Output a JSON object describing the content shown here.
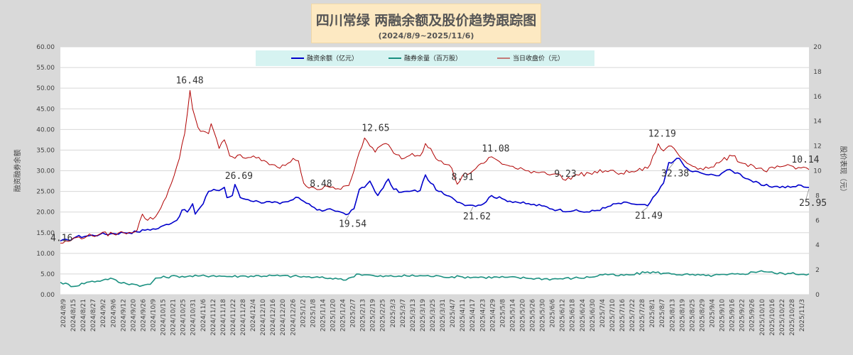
{
  "title": "四川常绿 两融余额及股价趋势跟踪图",
  "subtitle": "(2024/8/9~2025/11/6)",
  "chart_data": {
    "type": "line",
    "ylabel_left": "融资融券余额",
    "ylabel_right": "股价表现（元）",
    "ylim_left": [
      0,
      60
    ],
    "ylim_right": [
      0,
      20
    ],
    "left_ticks": [
      "0.00",
      "5.00",
      "10.00",
      "15.00",
      "20.00",
      "25.00",
      "30.00",
      "35.00",
      "40.00",
      "45.00",
      "50.00",
      "55.00",
      "60.00"
    ],
    "right_ticks": [
      "0",
      "2",
      "4",
      "6",
      "8",
      "10",
      "12",
      "14",
      "16",
      "18",
      "20"
    ],
    "x_tick_labels": [
      "2024/8/9",
      "2024/8/15",
      "2024/8/21",
      "2024/8/27",
      "2024/9/2",
      "2024/9/6",
      "2024/9/12",
      "2024/9/20",
      "2024/9/26",
      "2024/10/9",
      "2024/10/15",
      "2024/10/21",
      "2024/10/25",
      "2024/10/31",
      "2024/11/6",
      "2024/11/12",
      "2024/11/18",
      "2024/11/22",
      "2024/11/28",
      "2024/12/4",
      "2024/12/10",
      "2024/12/16",
      "2024/12/20",
      "2024/12/26",
      "2025/1/2",
      "2025/1/8",
      "2025/1/14",
      "2025/1/20",
      "2025/1/24",
      "2025/2/7",
      "2025/2/13",
      "2025/2/19",
      "2025/2/25",
      "2025/3/3",
      "2025/3/7",
      "2025/3/13",
      "2025/3/19",
      "2025/3/25",
      "2025/3/31",
      "2025/4/7",
      "2025/4/11",
      "2025/4/17",
      "2025/4/23",
      "2025/4/29",
      "2025/5/8",
      "2025/5/14",
      "2025/5/20",
      "2025/5/26",
      "2025/5/30",
      "2025/6/6",
      "2025/6/12",
      "2025/6/18",
      "2025/6/24",
      "2025/6/30",
      "2025/7/4",
      "2025/7/10",
      "2025/7/16",
      "2025/7/22",
      "2025/7/28",
      "2025/8/1",
      "2025/8/7",
      "2025/8/13",
      "2025/8/19",
      "2025/8/25",
      "2025/8/29",
      "2025/9/4",
      "2025/9/10",
      "2025/9/16",
      "2025/9/22",
      "2025/9/26",
      "2025/10/10",
      "2025/10/16",
      "2025/10/22",
      "2025/10/28",
      "2025/11/3"
    ],
    "legend_placement": "top-center",
    "series": [
      {
        "name": "融资余额（亿元）",
        "color": "#0000cc",
        "axis": "left",
        "points": [
          [
            0,
            13.0
          ],
          [
            3,
            13.2
          ],
          [
            6,
            14.0
          ],
          [
            10,
            14.2
          ],
          [
            15,
            14.6
          ],
          [
            20,
            14.8
          ],
          [
            24,
            15.0
          ],
          [
            29,
            15.2
          ],
          [
            33,
            15.8
          ],
          [
            37,
            16.0
          ],
          [
            40,
            17.0
          ],
          [
            44,
            18.0
          ],
          [
            46,
            20.5
          ],
          [
            48,
            20.0
          ],
          [
            50,
            22.0
          ],
          [
            51,
            19.5
          ],
          [
            54,
            22.0
          ],
          [
            56,
            25.0
          ],
          [
            58,
            25.5
          ],
          [
            60,
            25.2
          ],
          [
            62,
            26.0
          ],
          [
            63,
            23.5
          ],
          [
            65,
            24.0
          ],
          [
            66,
            26.69
          ],
          [
            68,
            23.5
          ],
          [
            71,
            23.0
          ],
          [
            75,
            22.5
          ],
          [
            80,
            22.3
          ],
          [
            83,
            22.0
          ],
          [
            86,
            22.5
          ],
          [
            90,
            23.5
          ],
          [
            94,
            22.0
          ],
          [
            97,
            20.5
          ],
          [
            100,
            20.4
          ],
          [
            103,
            20.5
          ],
          [
            106,
            20.0
          ],
          [
            109,
            19.54
          ],
          [
            111,
            20.8
          ],
          [
            113,
            25.5
          ],
          [
            115,
            26.0
          ],
          [
            117,
            27.5
          ],
          [
            120,
            24.0
          ],
          [
            122,
            25.8
          ],
          [
            124,
            28.0
          ],
          [
            126,
            25.5
          ],
          [
            129,
            24.8
          ],
          [
            132,
            25.0
          ],
          [
            136,
            25.2
          ],
          [
            138,
            29.0
          ],
          [
            140,
            27.0
          ],
          [
            143,
            25.0
          ],
          [
            146,
            24.0
          ],
          [
            149,
            23.0
          ],
          [
            152,
            22.0
          ],
          [
            156,
            21.62
          ],
          [
            160,
            22.0
          ],
          [
            163,
            24.0
          ],
          [
            168,
            23.0
          ],
          [
            172,
            22.5
          ],
          [
            176,
            22.0
          ],
          [
            182,
            21.5
          ],
          [
            188,
            20.5
          ],
          [
            194,
            20.3
          ],
          [
            200,
            20.0
          ],
          [
            206,
            21.0
          ],
          [
            210,
            22.0
          ],
          [
            215,
            22.2
          ],
          [
            218,
            21.8
          ],
          [
            222,
            21.49
          ],
          [
            226,
            25.0
          ],
          [
            228,
            27.0
          ],
          [
            230,
            32.0
          ],
          [
            232,
            32.38
          ],
          [
            234,
            33.0
          ],
          [
            236,
            31.0
          ],
          [
            238,
            30.0
          ],
          [
            242,
            29.5
          ],
          [
            245,
            29.0
          ],
          [
            248,
            28.8
          ],
          [
            252,
            30.2
          ],
          [
            256,
            29.5
          ],
          [
            260,
            28.0
          ],
          [
            265,
            26.5
          ],
          [
            270,
            26.2
          ],
          [
            276,
            26.0
          ],
          [
            280,
            26.5
          ],
          [
            283,
            25.95
          ]
        ]
      },
      {
        "name": "融券余量（百万股）",
        "color": "#1a9080",
        "axis": "left",
        "points": [
          [
            0,
            3.0
          ],
          [
            5,
            2.0
          ],
          [
            10,
            3.0
          ],
          [
            16,
            3.5
          ],
          [
            19,
            4.0
          ],
          [
            22,
            3.0
          ],
          [
            28,
            2.5
          ],
          [
            31,
            2.2
          ],
          [
            34,
            2.5
          ],
          [
            36,
            4.0
          ],
          [
            44,
            4.5
          ],
          [
            48,
            4.4
          ],
          [
            52,
            4.5
          ],
          [
            58,
            4.6
          ],
          [
            64,
            4.4
          ],
          [
            70,
            4.5
          ],
          [
            80,
            4.6
          ],
          [
            90,
            4.4
          ],
          [
            96,
            4.2
          ],
          [
            100,
            4.0
          ],
          [
            104,
            4.0
          ],
          [
            107,
            3.5
          ],
          [
            110,
            4.2
          ],
          [
            112,
            5.0
          ],
          [
            116,
            4.8
          ],
          [
            120,
            4.4
          ],
          [
            128,
            4.5
          ],
          [
            136,
            4.6
          ],
          [
            144,
            4.4
          ],
          [
            152,
            4.3
          ],
          [
            160,
            4.2
          ],
          [
            168,
            4.2
          ],
          [
            176,
            4.0
          ],
          [
            186,
            3.8
          ],
          [
            194,
            4.0
          ],
          [
            200,
            4.2
          ],
          [
            206,
            5.0
          ],
          [
            210,
            4.6
          ],
          [
            216,
            4.8
          ],
          [
            222,
            5.5
          ],
          [
            228,
            5.2
          ],
          [
            232,
            5.0
          ],
          [
            238,
            4.8
          ],
          [
            244,
            4.6
          ],
          [
            252,
            4.8
          ],
          [
            258,
            5.0
          ],
          [
            265,
            5.8
          ],
          [
            270,
            5.2
          ],
          [
            276,
            5.1
          ],
          [
            283,
            5.0
          ]
        ]
      },
      {
        "name": "当日收盘价（元）",
        "color": "#b00000",
        "axis": "right",
        "points": [
          [
            0,
            4.16
          ],
          [
            3,
            4.3
          ],
          [
            6,
            4.6
          ],
          [
            10,
            4.7
          ],
          [
            15,
            4.9
          ],
          [
            20,
            4.9
          ],
          [
            24,
            5.0
          ],
          [
            29,
            5.2
          ],
          [
            31,
            6.5
          ],
          [
            33,
            6.0
          ],
          [
            36,
            6.3
          ],
          [
            38,
            7.0
          ],
          [
            41,
            8.5
          ],
          [
            43,
            9.6
          ],
          [
            45,
            11.0
          ],
          [
            47,
            13.0
          ],
          [
            49,
            16.48
          ],
          [
            50,
            15.0
          ],
          [
            52,
            13.5
          ],
          [
            54,
            13.2
          ],
          [
            56,
            13.0
          ],
          [
            57,
            13.8
          ],
          [
            58,
            13.2
          ],
          [
            60,
            11.8
          ],
          [
            62,
            12.5
          ],
          [
            64,
            11.2
          ],
          [
            66,
            11.0
          ],
          [
            68,
            11.3
          ],
          [
            70,
            11.0
          ],
          [
            73,
            11.2
          ],
          [
            76,
            10.8
          ],
          [
            80,
            10.5
          ],
          [
            83,
            10.2
          ],
          [
            86,
            10.6
          ],
          [
            88,
            11.0
          ],
          [
            90,
            10.8
          ],
          [
            92,
            9.0
          ],
          [
            94,
            8.6
          ],
          [
            97,
            8.48
          ],
          [
            100,
            8.8
          ],
          [
            103,
            8.7
          ],
          [
            106,
            8.5
          ],
          [
            109,
            8.8
          ],
          [
            111,
            10.0
          ],
          [
            113,
            11.5
          ],
          [
            115,
            12.65
          ],
          [
            117,
            12.0
          ],
          [
            119,
            11.5
          ],
          [
            121,
            12.0
          ],
          [
            123,
            12.2
          ],
          [
            125,
            11.8
          ],
          [
            127,
            11.3
          ],
          [
            130,
            11.0
          ],
          [
            133,
            11.4
          ],
          [
            136,
            11.2
          ],
          [
            138,
            12.2
          ],
          [
            140,
            11.8
          ],
          [
            143,
            10.8
          ],
          [
            146,
            10.5
          ],
          [
            148,
            10.2
          ],
          [
            150,
            8.91
          ],
          [
            152,
            9.6
          ],
          [
            156,
            10.0
          ],
          [
            160,
            10.6
          ],
          [
            162,
            11.08
          ],
          [
            164,
            11.0
          ],
          [
            168,
            10.5
          ],
          [
            172,
            10.2
          ],
          [
            176,
            10.0
          ],
          [
            182,
            9.9
          ],
          [
            188,
            9.7
          ],
          [
            191,
            9.23
          ],
          [
            194,
            9.6
          ],
          [
            200,
            9.8
          ],
          [
            206,
            10.0
          ],
          [
            212,
            9.8
          ],
          [
            218,
            10.0
          ],
          [
            222,
            10.2
          ],
          [
            225,
            11.5
          ],
          [
            226,
            12.19
          ],
          [
            228,
            11.6
          ],
          [
            230,
            12.0
          ],
          [
            232,
            11.8
          ],
          [
            234,
            11.2
          ],
          [
            236,
            10.8
          ],
          [
            238,
            10.5
          ],
          [
            242,
            10.2
          ],
          [
            246,
            10.3
          ],
          [
            250,
            10.8
          ],
          [
            254,
            11.2
          ],
          [
            258,
            10.6
          ],
          [
            262,
            10.4
          ],
          [
            266,
            10.0
          ],
          [
            270,
            10.2
          ],
          [
            274,
            10.4
          ],
          [
            278,
            10.14
          ],
          [
            281,
            10.3
          ],
          [
            283,
            10.1
          ]
        ]
      }
    ],
    "annotations": [
      {
        "text": "4.16",
        "series": 2,
        "x": 0,
        "y": 4.16
      },
      {
        "text": "16.48",
        "series": 2,
        "x": 49,
        "y": 16.48
      },
      {
        "text": "8.48",
        "series": 2,
        "x": 97,
        "y": 8.48
      },
      {
        "text": "12.65",
        "series": 2,
        "x": 115,
        "y": 12.65
      },
      {
        "text": "8.91",
        "series": 2,
        "x": 150,
        "y": 8.91
      },
      {
        "text": "11.08",
        "series": 2,
        "x": 162,
        "y": 11.08
      },
      {
        "text": "9.23",
        "series": 2,
        "x": 191,
        "y": 9.23
      },
      {
        "text": "12.19",
        "series": 2,
        "x": 226,
        "y": 12.19
      },
      {
        "text": "10.14",
        "series": 2,
        "x": 278,
        "y": 10.14
      },
      {
        "text": "26.69",
        "series": 0,
        "x": 66,
        "y": 26.69
      },
      {
        "text": "19.54",
        "series": 0,
        "x": 109,
        "y": 19.54
      },
      {
        "text": "21.62",
        "series": 0,
        "x": 156,
        "y": 21.62
      },
      {
        "text": "21.49",
        "series": 0,
        "x": 222,
        "y": 21.49
      },
      {
        "text": "32.38",
        "series": 0,
        "x": 232,
        "y": 32.38
      },
      {
        "text": "25.95",
        "series": 0,
        "x": 283,
        "y": 25.95
      }
    ]
  }
}
